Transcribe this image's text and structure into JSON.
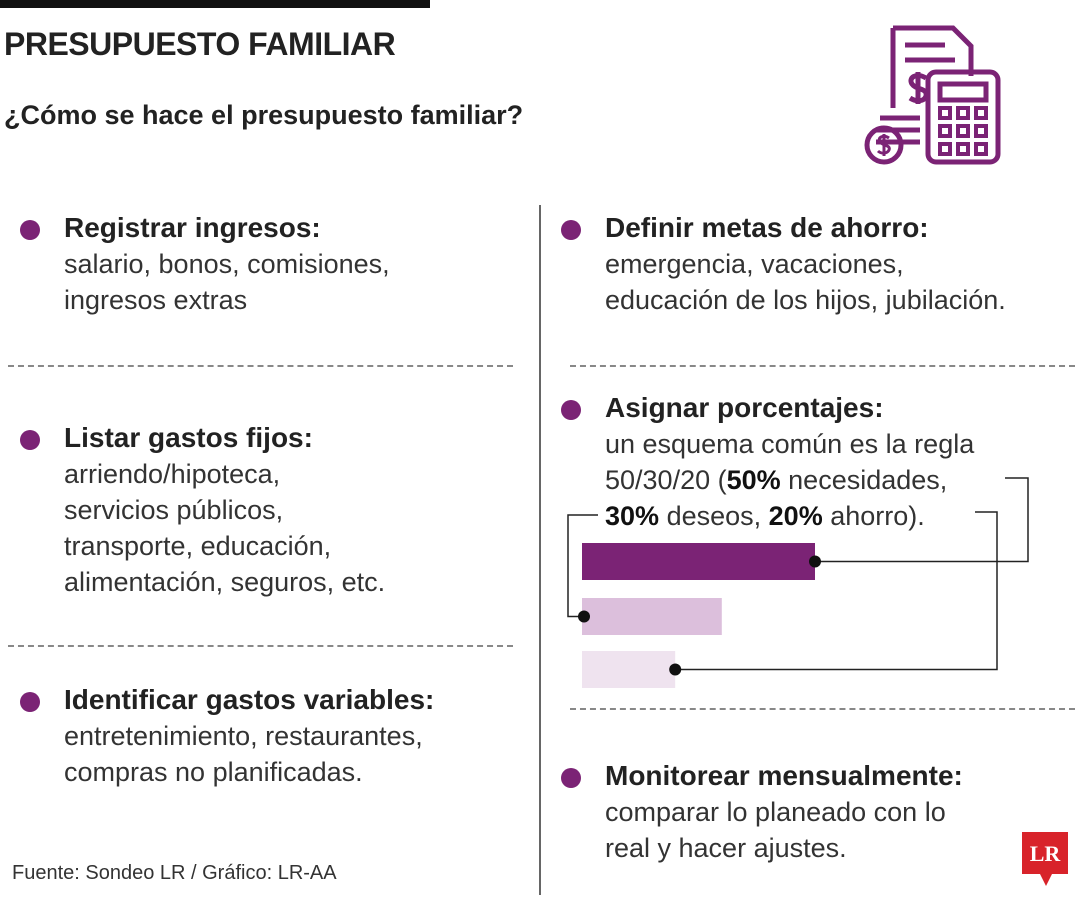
{
  "header": {
    "title": "PRESUPUESTO FAMILIAR",
    "subtitle": "¿Cómo se hace el presupuesto familiar?"
  },
  "left_steps": [
    {
      "title": "Registrar ingresos:",
      "lines": [
        "salario, bonos, comisiones,",
        "ingresos extras"
      ]
    },
    {
      "title": "Listar gastos fijos:",
      "lines": [
        "arriendo/hipoteca,",
        "servicios públicos,",
        "transporte, educación,",
        "alimentación, seguros, etc."
      ]
    },
    {
      "title": "Identificar gastos variables:",
      "lines": [
        "entretenimiento, restaurantes,",
        "compras no planificadas."
      ]
    }
  ],
  "right_steps": [
    {
      "title": "Definir metas de ahorro:",
      "lines": [
        "emergencia, vacaciones,",
        "educación de los hijos, jubilación."
      ]
    },
    {
      "title": "Asignar porcentajes:",
      "intro": [
        "un esquema común es la regla",
        "50/30/20 ("
      ],
      "shares": [
        {
          "value": 50,
          "label": "50%",
          "text": "necesidades,",
          "color": "#7b2375"
        },
        {
          "value": 30,
          "label": "30%",
          "text": "deseos,",
          "color": "#dcbfdc"
        },
        {
          "value": 20,
          "label": "20%",
          "text": "ahorro).",
          "color": "#efe3ef"
        }
      ]
    },
    {
      "title": "Monitorear mensualmente:",
      "lines": [
        "comparar lo planeado con lo",
        "real y hacer ajustes."
      ]
    }
  ],
  "footer": {
    "source": "Fuente: Sondeo LR / Gráfico: LR-AA",
    "logo": "LR"
  }
}
